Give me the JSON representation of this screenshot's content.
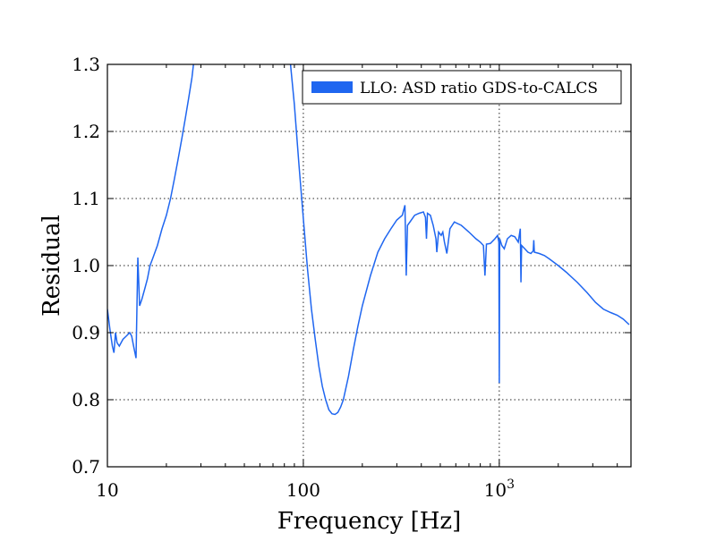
{
  "chart_data": {
    "type": "line",
    "title": "",
    "xlabel": "Frequency [Hz]",
    "ylabel": "Residual",
    "x_scale": "log",
    "xlim": [
      10,
      4700
    ],
    "ylim": [
      0.7,
      1.3
    ],
    "grid": true,
    "x_ticks": [
      {
        "value": 10,
        "label": "10",
        "sup": ""
      },
      {
        "value": 100,
        "label": "100",
        "sup": ""
      },
      {
        "value": 1000,
        "label": "10",
        "sup": "3"
      }
    ],
    "y_ticks": [
      {
        "value": 0.7,
        "label": "0.7"
      },
      {
        "value": 0.8,
        "label": "0.8"
      },
      {
        "value": 0.9,
        "label": "0.9"
      },
      {
        "value": 1.0,
        "label": "1.0"
      },
      {
        "value": 1.1,
        "label": "1.1"
      },
      {
        "value": 1.2,
        "label": "1.2"
      },
      {
        "value": 1.3,
        "label": "1.3"
      }
    ],
    "legend": {
      "position": "top-right"
    },
    "series": [
      {
        "name": "LLO: ASD ratio GDS-to-CALCS",
        "color": "#1f66f0",
        "points": [
          [
            10.0,
            0.935
          ],
          [
            10.3,
            0.905
          ],
          [
            10.6,
            0.88
          ],
          [
            10.8,
            0.87
          ],
          [
            11.0,
            0.9
          ],
          [
            11.2,
            0.885
          ],
          [
            11.5,
            0.88
          ],
          [
            12.0,
            0.89
          ],
          [
            12.5,
            0.895
          ],
          [
            13.0,
            0.9
          ],
          [
            13.3,
            0.895
          ],
          [
            13.6,
            0.88
          ],
          [
            14.0,
            0.862
          ],
          [
            14.3,
            1.012
          ],
          [
            14.6,
            0.94
          ],
          [
            15.0,
            0.95
          ],
          [
            15.5,
            0.965
          ],
          [
            16.0,
            0.98
          ],
          [
            16.5,
            1.0
          ],
          [
            17.0,
            1.01
          ],
          [
            18.0,
            1.03
          ],
          [
            19.0,
            1.055
          ],
          [
            20.0,
            1.075
          ],
          [
            21.0,
            1.1
          ],
          [
            22.0,
            1.13
          ],
          [
            23.0,
            1.16
          ],
          [
            24.0,
            1.19
          ],
          [
            25.0,
            1.22
          ],
          [
            26.0,
            1.25
          ],
          [
            27.0,
            1.28
          ],
          [
            27.5,
            1.3
          ],
          [
            86.0,
            1.3
          ],
          [
            90.0,
            1.24
          ],
          [
            95.0,
            1.15
          ],
          [
            100.0,
            1.07
          ],
          [
            105.0,
            0.995
          ],
          [
            110.0,
            0.935
          ],
          [
            115.0,
            0.89
          ],
          [
            120.0,
            0.85
          ],
          [
            125.0,
            0.82
          ],
          [
            130.0,
            0.8
          ],
          [
            135.0,
            0.785
          ],
          [
            140.0,
            0.779
          ],
          [
            145.0,
            0.778
          ],
          [
            150.0,
            0.781
          ],
          [
            155.0,
            0.789
          ],
          [
            160.0,
            0.8
          ],
          [
            170.0,
            0.835
          ],
          [
            180.0,
            0.875
          ],
          [
            190.0,
            0.91
          ],
          [
            200.0,
            0.94
          ],
          [
            220.0,
            0.985
          ],
          [
            240.0,
            1.02
          ],
          [
            260.0,
            1.04
          ],
          [
            280.0,
            1.055
          ],
          [
            300.0,
            1.068
          ],
          [
            320.0,
            1.075
          ],
          [
            330.0,
            1.09
          ],
          [
            335.0,
            0.985
          ],
          [
            340.0,
            1.06
          ],
          [
            350.0,
            1.065
          ],
          [
            370.0,
            1.075
          ],
          [
            390.0,
            1.078
          ],
          [
            410.0,
            1.08
          ],
          [
            420.0,
            1.072
          ],
          [
            425.0,
            1.04
          ],
          [
            430.0,
            1.078
          ],
          [
            445.0,
            1.075
          ],
          [
            460.0,
            1.06
          ],
          [
            475.0,
            1.04
          ],
          [
            480.0,
            1.02
          ],
          [
            490.0,
            1.05
          ],
          [
            505.0,
            1.045
          ],
          [
            515.0,
            1.05
          ],
          [
            525.0,
            1.035
          ],
          [
            540.0,
            1.018
          ],
          [
            560.0,
            1.055
          ],
          [
            590.0,
            1.065
          ],
          [
            640.0,
            1.06
          ],
          [
            700.0,
            1.05
          ],
          [
            760.0,
            1.04
          ],
          [
            800.0,
            1.035
          ],
          [
            830.0,
            1.03
          ],
          [
            845.0,
            0.985
          ],
          [
            860.0,
            1.032
          ],
          [
            900.0,
            1.033
          ],
          [
            950.0,
            1.04
          ],
          [
            980.0,
            1.045
          ],
          [
            995.0,
            1.035
          ],
          [
            1000.0,
            0.825
          ],
          [
            1005.0,
            1.04
          ],
          [
            1030.0,
            1.03
          ],
          [
            1060.0,
            1.025
          ],
          [
            1100.0,
            1.04
          ],
          [
            1150.0,
            1.045
          ],
          [
            1200.0,
            1.043
          ],
          [
            1250.0,
            1.035
          ],
          [
            1280.0,
            1.055
          ],
          [
            1290.0,
            0.975
          ],
          [
            1300.0,
            1.03
          ],
          [
            1350.0,
            1.025
          ],
          [
            1400.0,
            1.02
          ],
          [
            1450.0,
            1.018
          ],
          [
            1490.0,
            1.022
          ],
          [
            1500.0,
            1.038
          ],
          [
            1510.0,
            1.02
          ],
          [
            1600.0,
            1.018
          ],
          [
            1700.0,
            1.015
          ],
          [
            1800.0,
            1.01
          ],
          [
            2000.0,
            1.0
          ],
          [
            2200.0,
            0.99
          ],
          [
            2500.0,
            0.975
          ],
          [
            2800.0,
            0.96
          ],
          [
            3100.0,
            0.945
          ],
          [
            3400.0,
            0.935
          ],
          [
            3700.0,
            0.93
          ],
          [
            4000.0,
            0.926
          ],
          [
            4300.0,
            0.92
          ],
          [
            4600.0,
            0.912
          ]
        ]
      }
    ]
  }
}
